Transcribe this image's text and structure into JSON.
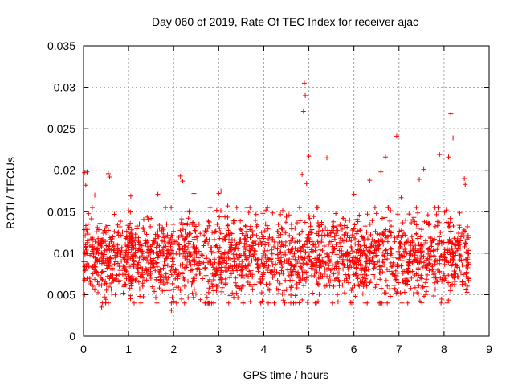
{
  "chart_data": {
    "type": "scatter",
    "title": "Day 060 of 2019, Rate Of TEC Index for receiver ajac",
    "xlabel": "GPS time / hours",
    "ylabel": "ROTI / TECUs",
    "xlim": [
      0,
      9
    ],
    "ylim": [
      0,
      0.035
    ],
    "x_ticks": [
      "0",
      "1",
      "2",
      "3",
      "4",
      "5",
      "6",
      "7",
      "8",
      "9"
    ],
    "y_ticks": [
      "0",
      "0.005",
      "0.01",
      "0.015",
      "0.02",
      "0.025",
      "0.03",
      "0.035"
    ],
    "grid": true,
    "marker": "+",
    "series": [
      {
        "name": "ROTI",
        "color": "#ff0000",
        "points": [
          [
            0.02,
            0.0197
          ],
          [
            0.05,
            0.0182
          ],
          [
            0.08,
            0.0198
          ],
          [
            0.1,
            0.0123
          ],
          [
            0.15,
            0.0063
          ],
          [
            0.25,
            0.017
          ],
          [
            0.4,
            0.0035
          ],
          [
            0.45,
            0.0088
          ],
          [
            0.5,
            0.0125
          ],
          [
            0.55,
            0.0196
          ],
          [
            0.58,
            0.0192
          ],
          [
            0.7,
            0.0068
          ],
          [
            0.9,
            0.0061
          ],
          [
            1.0,
            0.0151
          ],
          [
            1.05,
            0.0169
          ],
          [
            1.15,
            0.0067
          ],
          [
            1.25,
            0.0048
          ],
          [
            1.35,
            0.0126
          ],
          [
            1.5,
            0.0142
          ],
          [
            1.65,
            0.0171
          ],
          [
            1.75,
            0.0131
          ],
          [
            1.85,
            0.0068
          ],
          [
            1.9,
            0.0055
          ],
          [
            1.95,
            0.0031
          ],
          [
            2.0,
            0.0042
          ],
          [
            2.05,
            0.0114
          ],
          [
            2.15,
            0.0193
          ],
          [
            2.2,
            0.0187
          ],
          [
            2.25,
            0.0094
          ],
          [
            2.35,
            0.0151
          ],
          [
            2.45,
            0.0172
          ],
          [
            2.55,
            0.0085
          ],
          [
            2.7,
            0.0127
          ],
          [
            2.85,
            0.0063
          ],
          [
            2.95,
            0.0055
          ],
          [
            3.0,
            0.0172
          ],
          [
            3.05,
            0.0175
          ],
          [
            3.15,
            0.0069
          ],
          [
            3.2,
            0.0157
          ],
          [
            3.3,
            0.0052
          ],
          [
            3.4,
            0.0155
          ],
          [
            3.5,
            0.0128
          ],
          [
            3.65,
            0.0065
          ],
          [
            3.75,
            0.0056
          ],
          [
            3.85,
            0.0134
          ],
          [
            3.95,
            0.0125
          ],
          [
            4.05,
            0.0152
          ],
          [
            4.2,
            0.0086
          ],
          [
            4.35,
            0.0101
          ],
          [
            4.5,
            0.0145
          ],
          [
            4.6,
            0.0102
          ],
          [
            4.7,
            0.0049
          ],
          [
            4.75,
            0.0114
          ],
          [
            4.85,
            0.0195
          ],
          [
            4.88,
            0.0271
          ],
          [
            4.9,
            0.0305
          ],
          [
            4.92,
            0.029
          ],
          [
            4.95,
            0.0184
          ],
          [
            5.0,
            0.0217
          ],
          [
            5.1,
            0.0086
          ],
          [
            5.25,
            0.0104
          ],
          [
            5.4,
            0.0215
          ],
          [
            5.55,
            0.0075
          ],
          [
            5.7,
            0.0118
          ],
          [
            5.85,
            0.0101
          ],
          [
            6.0,
            0.0171
          ],
          [
            6.1,
            0.0062
          ],
          [
            6.2,
            0.0051
          ],
          [
            6.35,
            0.0188
          ],
          [
            6.5,
            0.0148
          ],
          [
            6.6,
            0.0198
          ],
          [
            6.7,
            0.0216
          ],
          [
            6.8,
            0.0126
          ],
          [
            6.95,
            0.0241
          ],
          [
            7.05,
            0.0167
          ],
          [
            7.2,
            0.0116
          ],
          [
            7.3,
            0.0078
          ],
          [
            7.45,
            0.0189
          ],
          [
            7.55,
            0.0201
          ],
          [
            7.65,
            0.0136
          ],
          [
            7.8,
            0.0087
          ],
          [
            7.9,
            0.0219
          ],
          [
            7.95,
            0.0066
          ],
          [
            8.05,
            0.0152
          ],
          [
            8.1,
            0.0216
          ],
          [
            8.15,
            0.0268
          ],
          [
            8.2,
            0.0239
          ],
          [
            8.3,
            0.0114
          ],
          [
            8.45,
            0.019
          ],
          [
            8.47,
            0.0183
          ],
          [
            8.5,
            0.0077
          ],
          [
            8.52,
            0.0132
          ]
        ],
        "dense_band": {
          "x_start": 0,
          "x_end": 8.55,
          "center": 0.0095,
          "spread": 0.0025,
          "count": 2100
        }
      }
    ]
  }
}
